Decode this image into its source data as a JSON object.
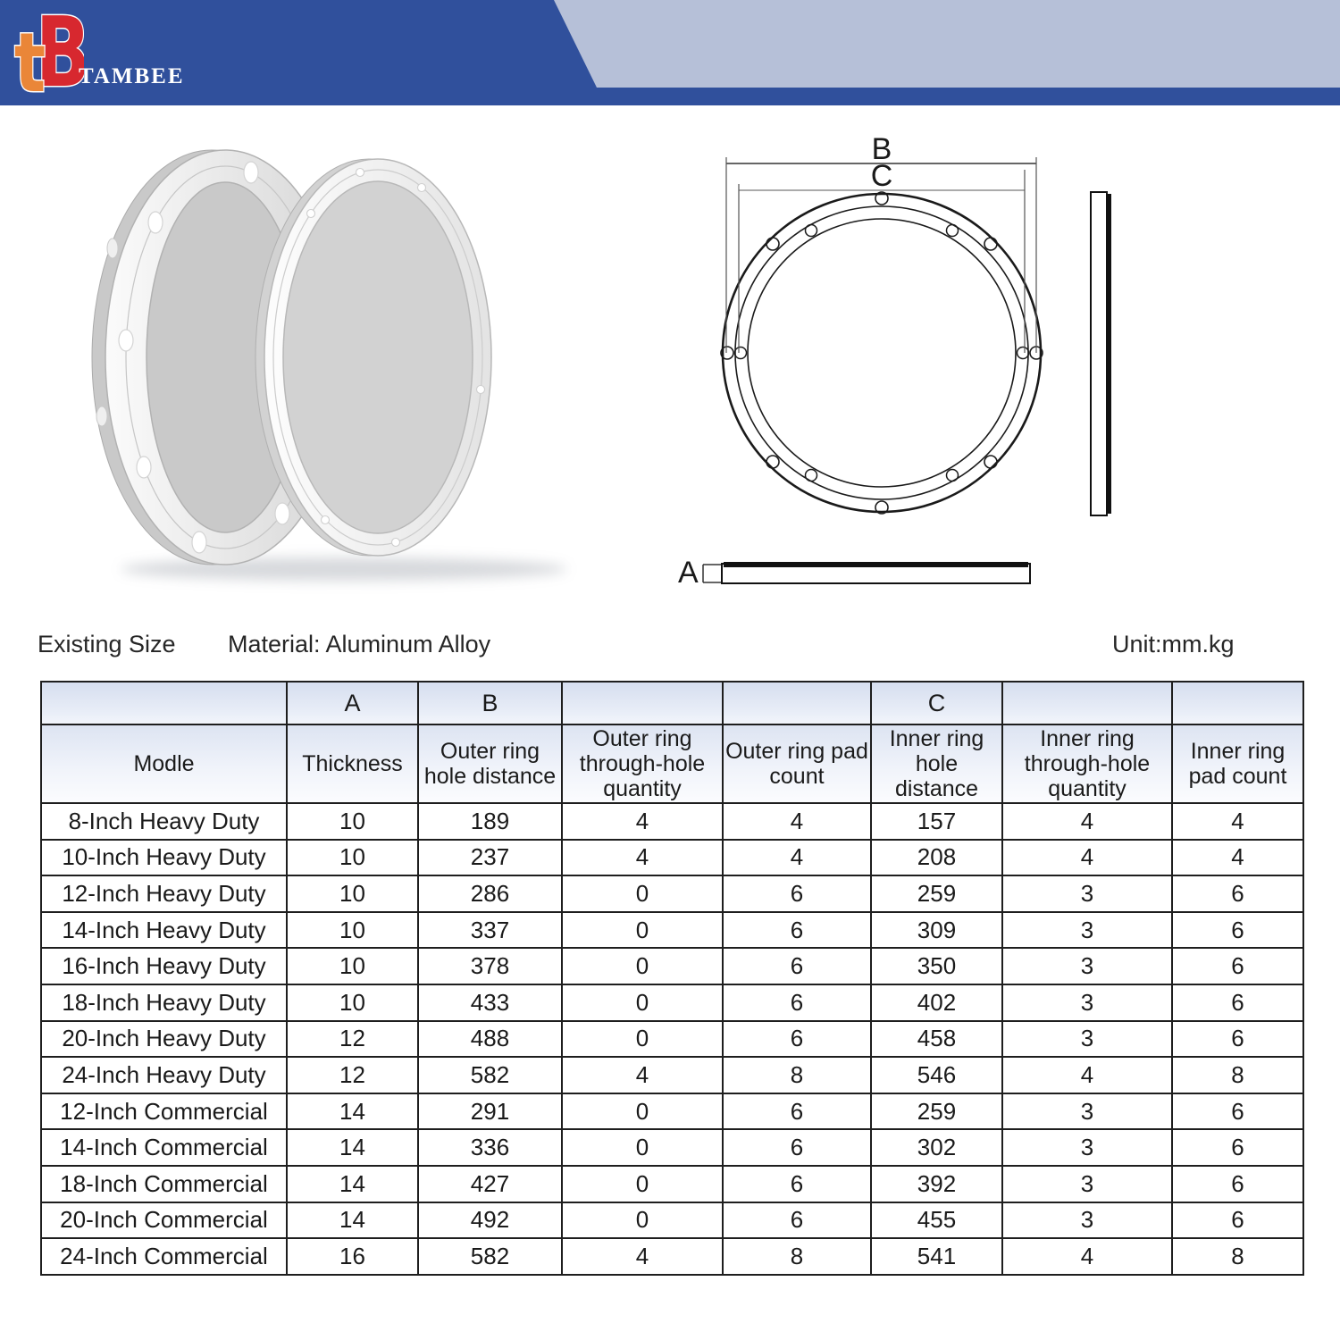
{
  "header": {
    "brand": "TAMBEE",
    "logo": {
      "t": "t",
      "b": "B"
    },
    "colors": {
      "navy": "#30509c",
      "ribbon": "#b6c0d8",
      "logo_red": "#d7282f",
      "logo_orange": "#ea8638",
      "brand_text": "#ffffff"
    }
  },
  "diagram": {
    "labels": {
      "a": "A",
      "b": "B",
      "c": "C"
    }
  },
  "info": {
    "existing_size": "Existing Size",
    "material": "Material: Aluminum Alloy",
    "unit": "Unit:mm.kg"
  },
  "table": {
    "dimension_row": [
      "",
      "A",
      "B",
      "",
      "",
      "C",
      "",
      ""
    ],
    "header_row": [
      "Modle",
      "Thickness",
      "Outer ring hole distance",
      "Outer ring through-hole quantity",
      "Outer ring pad count",
      "Inner ring hole distance",
      "Inner ring through-hole quantity",
      "Inner ring pad count"
    ],
    "rows": [
      [
        "8-Inch Heavy Duty",
        10,
        189,
        4,
        4,
        157,
        4,
        4
      ],
      [
        "10-Inch Heavy Duty",
        10,
        237,
        4,
        4,
        208,
        4,
        4
      ],
      [
        "12-Inch Heavy Duty",
        10,
        286,
        0,
        6,
        259,
        3,
        6
      ],
      [
        "14-Inch Heavy Duty",
        10,
        337,
        0,
        6,
        309,
        3,
        6
      ],
      [
        "16-Inch Heavy Duty",
        10,
        378,
        0,
        6,
        350,
        3,
        6
      ],
      [
        "18-Inch Heavy Duty",
        10,
        433,
        0,
        6,
        402,
        3,
        6
      ],
      [
        "20-Inch Heavy Duty",
        12,
        488,
        0,
        6,
        458,
        3,
        6
      ],
      [
        "24-Inch Heavy Duty",
        12,
        582,
        4,
        8,
        546,
        4,
        8
      ],
      [
        "12-Inch Commercial",
        14,
        291,
        0,
        6,
        259,
        3,
        6
      ],
      [
        "14-Inch Commercial",
        14,
        336,
        0,
        6,
        302,
        3,
        6
      ],
      [
        "18-Inch Commercial",
        14,
        427,
        0,
        6,
        392,
        3,
        6
      ],
      [
        "20-Inch Commercial",
        14,
        492,
        0,
        6,
        455,
        3,
        6
      ],
      [
        "24-Inch Commercial",
        16,
        582,
        4,
        8,
        541,
        4,
        8
      ]
    ]
  }
}
